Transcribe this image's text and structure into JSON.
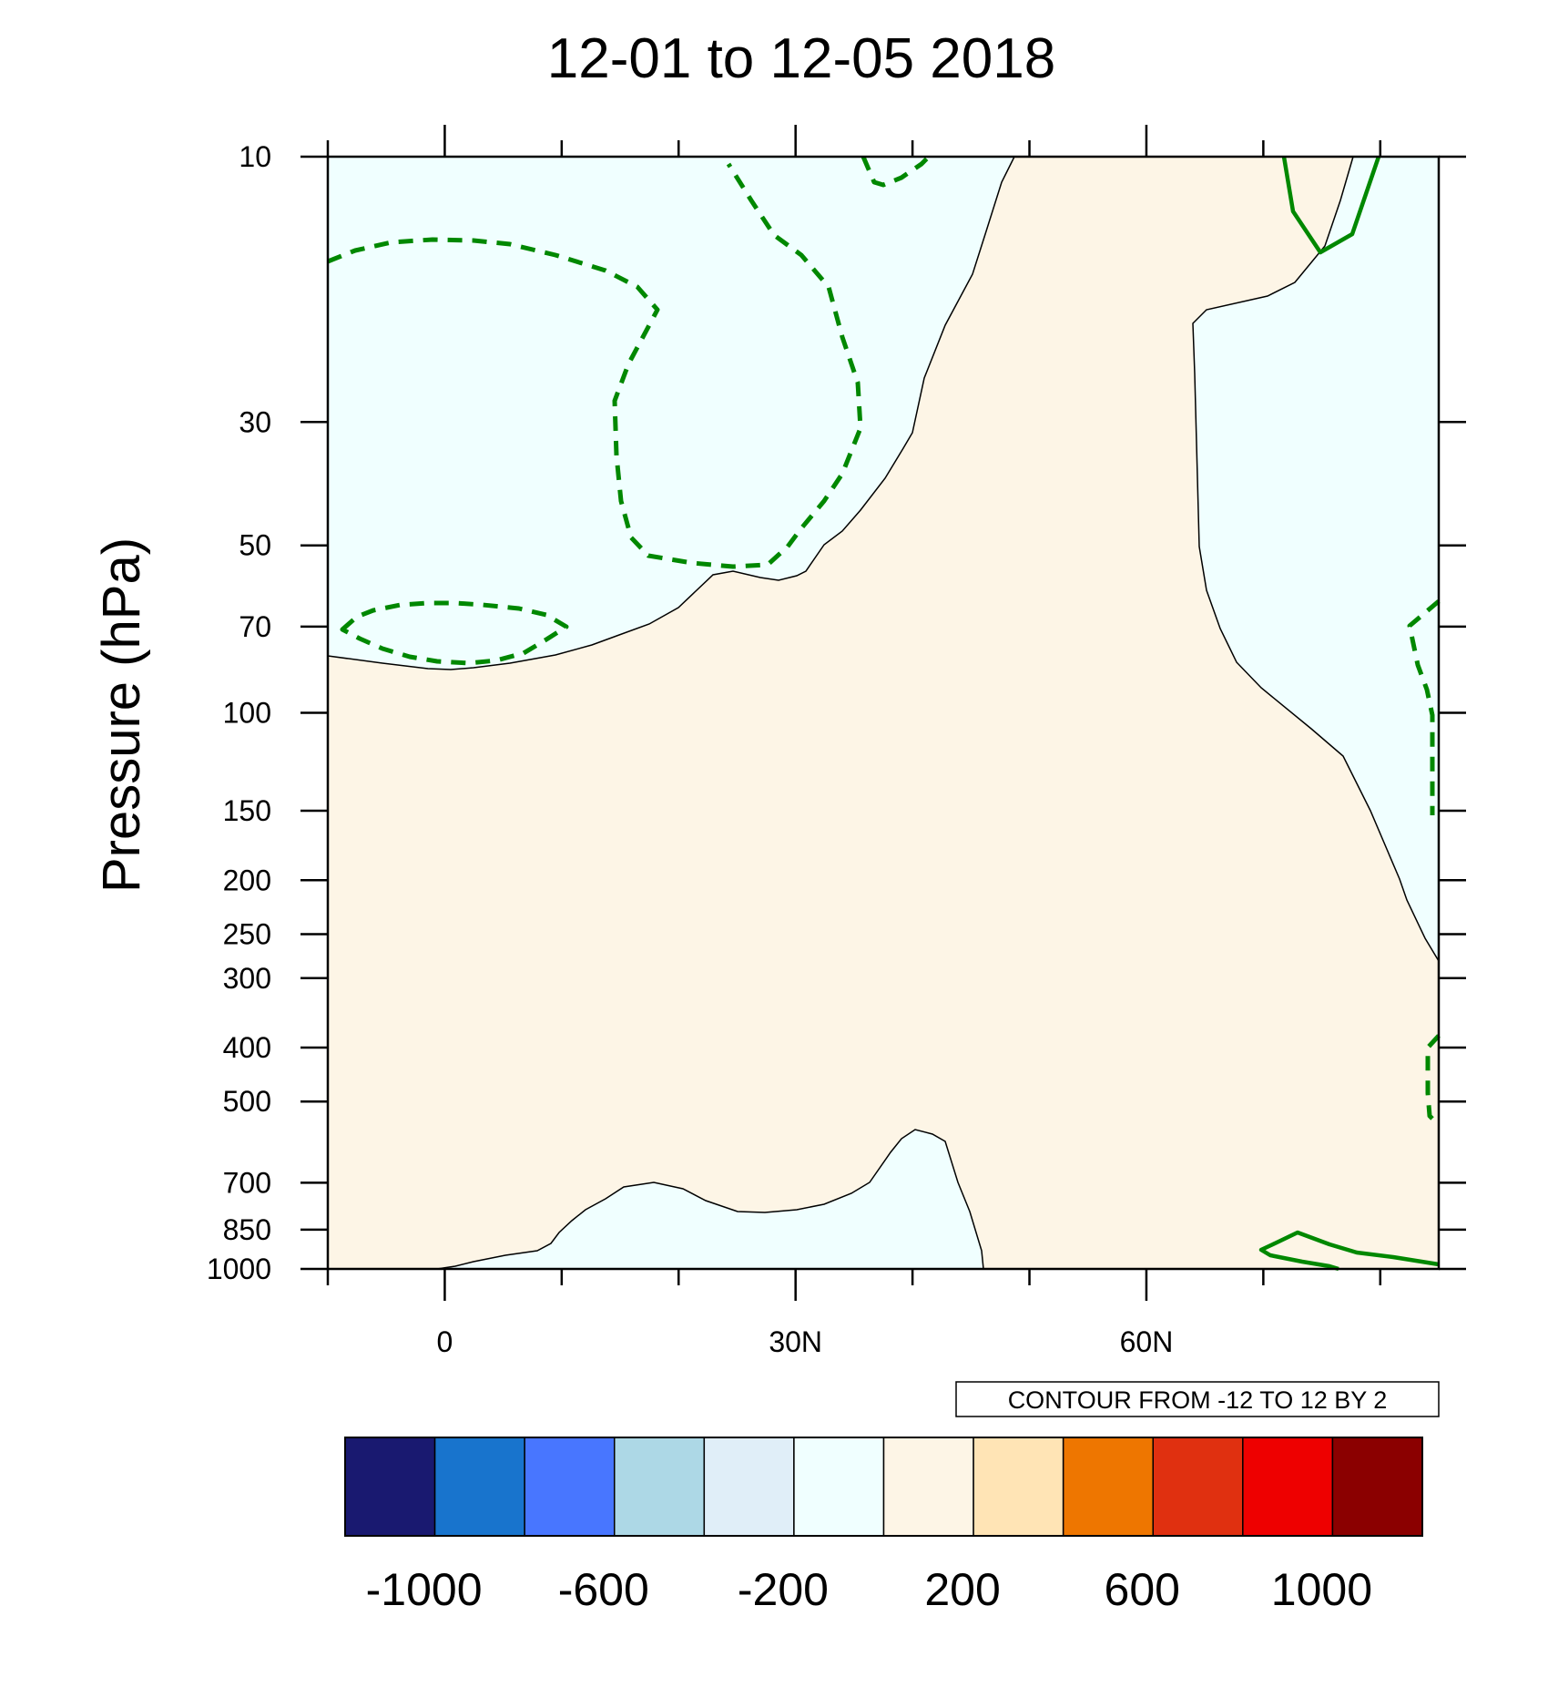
{
  "chart_data": {
    "type": "heatmap",
    "subtype": "latitude-pressure cross-section contour plot",
    "title": "12-01 to 12-05 2018",
    "ylabel": "Pressure (hPa)",
    "xlabel": "",
    "x_ticks": [
      {
        "value": 0,
        "label": "0"
      },
      {
        "value": 30,
        "label": "30N"
      },
      {
        "value": 60,
        "label": "60N"
      }
    ],
    "xlim": [
      -10,
      85
    ],
    "y_scale": "log (inverted)",
    "ylim": [
      1000,
      10
    ],
    "y_ticks": [
      10,
      30,
      50,
      70,
      100,
      150,
      200,
      250,
      300,
      400,
      500,
      700,
      850,
      1000
    ],
    "contour_info": "CONTOUR FROM -12 TO 12 BY 2",
    "colorbar": {
      "colors": [
        "#191970",
        "#1874CD",
        "#4876FF",
        "#ADD8E6",
        "#E0EEF8",
        "#F0FFFF",
        "#FDF5E6",
        "#FFE4B5",
        "#EE7600",
        "#E03010",
        "#EE0000",
        "#8B0000"
      ],
      "labels": [
        "-1000",
        "-600",
        "-200",
        "200",
        "600",
        "1000"
      ]
    },
    "regions": [
      {
        "name": "negative",
        "fill": "#F0FFFF",
        "description": "Light cyan areas: upper-left stratosphere, right edge high latitudes, and lower-troposphere bump near 10-45N"
      },
      {
        "name": "positive",
        "fill": "#FDF5E6",
        "description": "Light tan area covering most of troposphere and a column from ~30N to ~65N upward"
      }
    ],
    "contour_lines": [
      {
        "style": "dashed",
        "color": "#008800",
        "sign": "negative"
      },
      {
        "style": "solid",
        "color": "#008800",
        "sign": "positive"
      }
    ],
    "zero_line_color": "#000000",
    "legend": "colorbar at bottom"
  }
}
